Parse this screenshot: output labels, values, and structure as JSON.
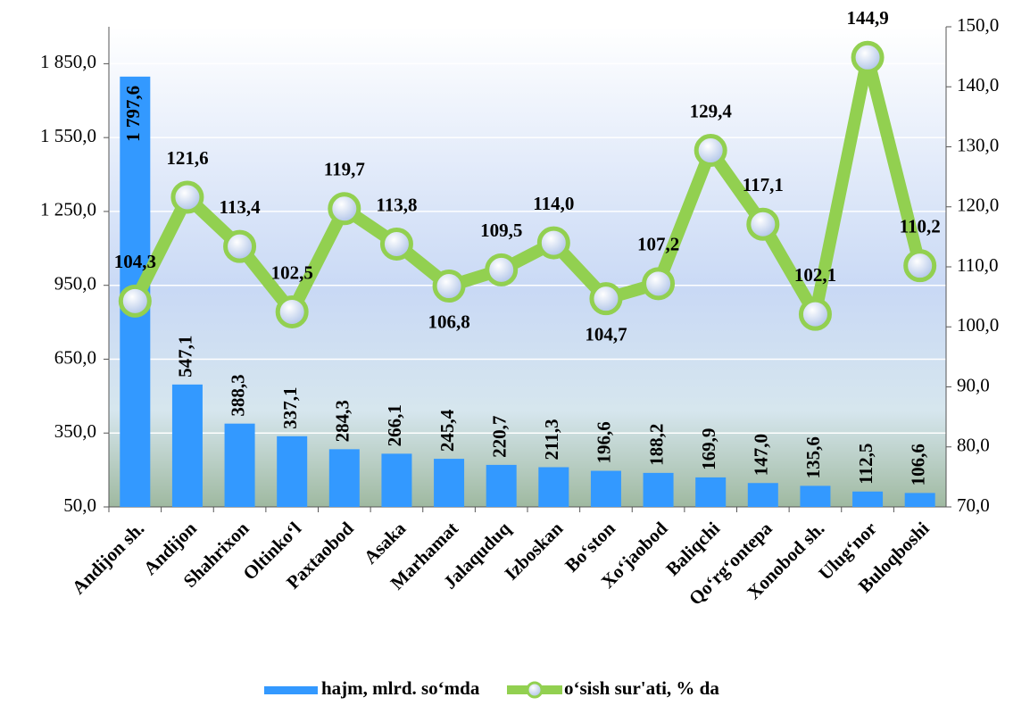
{
  "chart_data": {
    "type": "bar",
    "categories": [
      "Andijon sh.",
      "Andijon",
      "Shahrixon",
      "Oltinko‘l",
      "Paxtaobod",
      "Asaka",
      "Marhamat",
      "Jalaquduq",
      "Izboskan",
      "Bo‘ston",
      "Xo‘jaobod",
      "Baliqchi",
      "Qo‘rg‘ontepa",
      "Xonobod sh.",
      "Ulug‘nor",
      "Buloqboshi"
    ],
    "series": [
      {
        "name": "hajm, mlrd. so‘mda",
        "type": "bar",
        "color": "#3399ff",
        "values": [
          1797.6,
          547.1,
          388.3,
          337.1,
          284.3,
          266.1,
          245.4,
          220.7,
          211.3,
          196.6,
          188.2,
          169.9,
          147.0,
          135.6,
          112.5,
          106.6
        ],
        "value_labels": [
          "1 797,6",
          "547,1",
          "388,3",
          "337,1",
          "284,3",
          "266,1",
          "245,4",
          "220,7",
          "211,3",
          "196,6",
          "188,2",
          "169,9",
          "147,0",
          "135,6",
          "112,5",
          "106,6"
        ]
      },
      {
        "name": "o‘sish sur'ati, % da",
        "type": "line",
        "axis": "y2",
        "color": "#92d050",
        "values": [
          104.3,
          121.6,
          113.4,
          102.5,
          119.7,
          113.8,
          106.8,
          109.5,
          114.0,
          104.7,
          107.2,
          129.4,
          117.1,
          102.1,
          144.9,
          110.2
        ],
        "value_labels": [
          "104,3",
          "121,6",
          "113,4",
          "102,5",
          "119,7",
          "113,8",
          "106,8",
          "109,5",
          "114,0",
          "104,7",
          "107,2",
          "129,4",
          "117,1",
          "102,1",
          "144,9",
          "110,2"
        ]
      }
    ],
    "ylim": [
      50,
      2000
    ],
    "yticks": [
      {
        "value": 50,
        "label": "50,0"
      },
      {
        "value": 350,
        "label": "350,0"
      },
      {
        "value": 650,
        "label": "650,0"
      },
      {
        "value": 950,
        "label": "950,0"
      },
      {
        "value": 1250,
        "label": "1 250,0"
      },
      {
        "value": 1550,
        "label": "1 550,0"
      },
      {
        "value": 1850,
        "label": "1 850,0"
      }
    ],
    "y2lim": [
      70,
      150
    ],
    "y2ticks": [
      {
        "value": 70,
        "label": "70,0"
      },
      {
        "value": 80,
        "label": "80,0"
      },
      {
        "value": 90,
        "label": "90,0"
      },
      {
        "value": 100,
        "label": "100,0"
      },
      {
        "value": 110,
        "label": "110,0"
      },
      {
        "value": 120,
        "label": "120,0"
      },
      {
        "value": 130,
        "label": "130,0"
      },
      {
        "value": 140,
        "label": "140,0"
      },
      {
        "value": 150,
        "label": "150,0"
      }
    ],
    "grid": true,
    "legend": "bottom"
  }
}
